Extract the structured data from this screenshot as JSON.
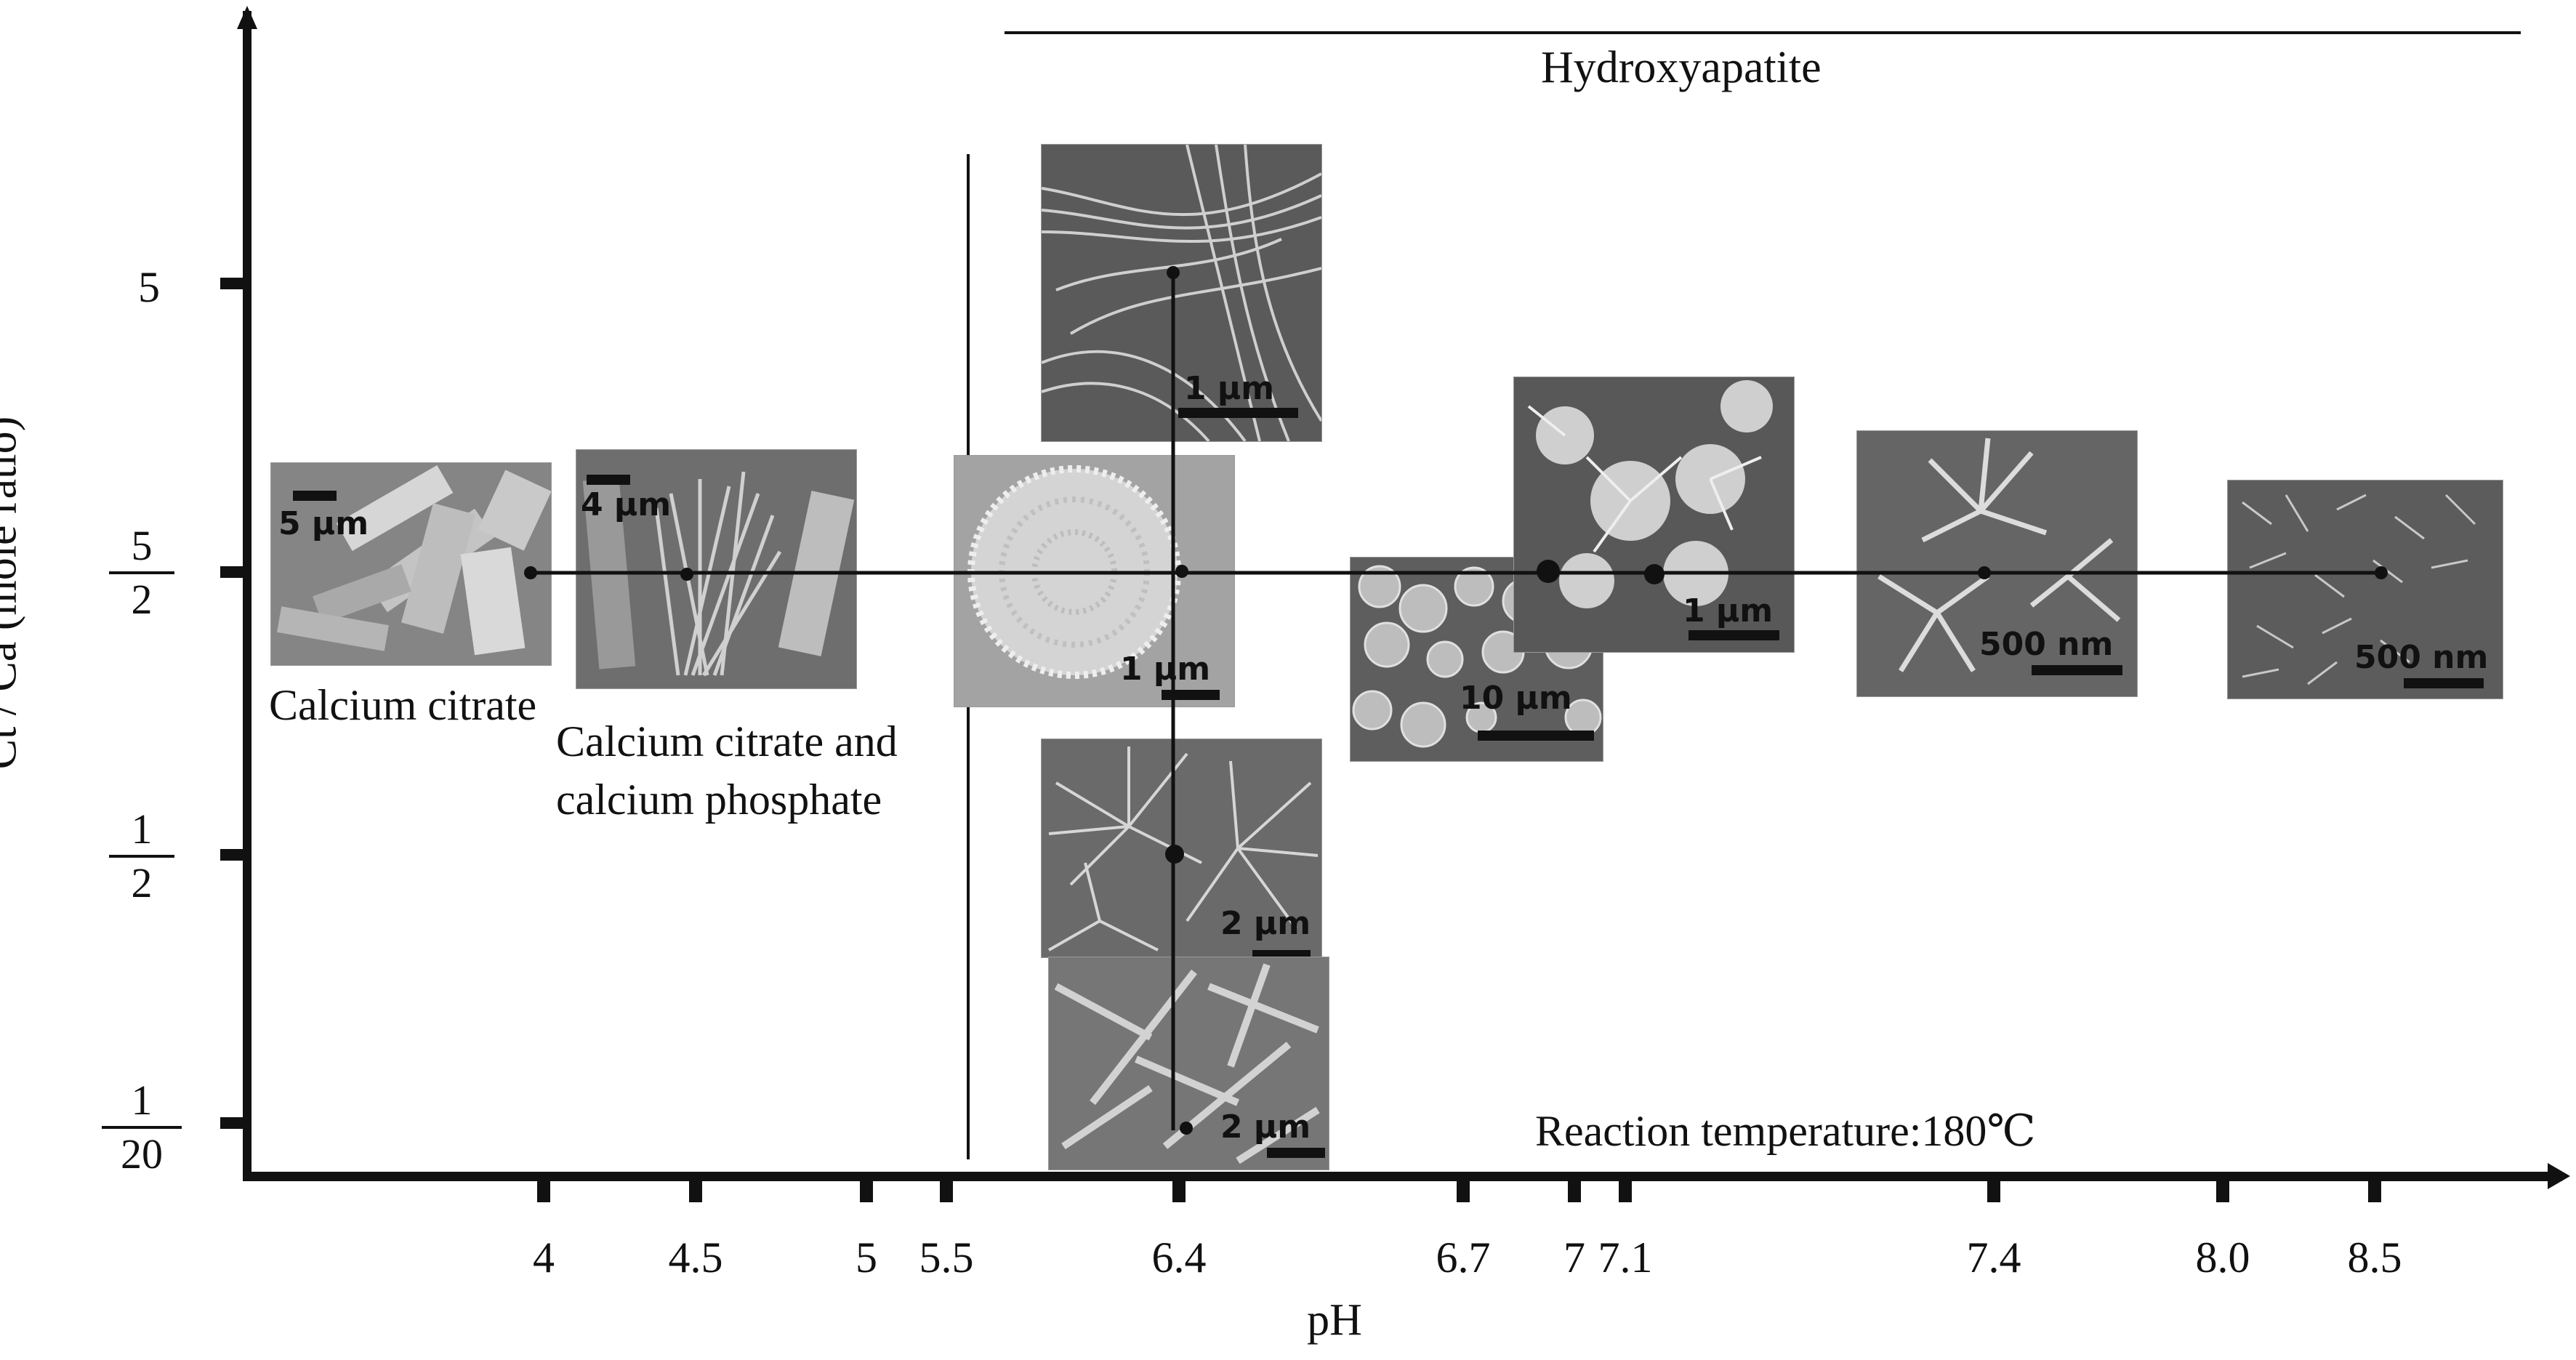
{
  "axes": {
    "x_title": "pH",
    "y_title": "Ct / Ca (mole ratio)",
    "x_ticks": [
      "4",
      "4.5",
      "5",
      "5.5",
      "6.4",
      "6.7",
      "7",
      "7.1",
      "7.4",
      "8.0",
      "8.5"
    ],
    "y_ticks": [
      {
        "num": "5",
        "den": ""
      },
      {
        "num": "5",
        "den": "2"
      },
      {
        "num": "1",
        "den": "2"
      },
      {
        "num": "1",
        "den": "20"
      }
    ]
  },
  "regions": {
    "hydroxyapatite": "Hydroxyapatite",
    "calcium_citrate": "Calcium citrate",
    "mixed_line1": "Calcium citrate and",
    "mixed_line2": "calcium phosphate"
  },
  "condition": "Reaction temperature:180℃",
  "micrographs": [
    {
      "id": "calcium-citrate",
      "scale": "5 μm",
      "texture": "plates"
    },
    {
      "id": "citrate-phosphate",
      "scale": "4 μm",
      "texture": "needles"
    },
    {
      "id": "ph64-ratio5",
      "scale": "1 μm",
      "texture": "fibers"
    },
    {
      "id": "ph64-ratio5-2",
      "scale": "1 μm",
      "texture": "disk"
    },
    {
      "id": "ph64-ratio1-2",
      "scale": "2 μm",
      "texture": "urchins"
    },
    {
      "id": "ph64-ratio1-20",
      "scale": "2 μm",
      "texture": "sticks"
    },
    {
      "id": "ph67",
      "scale": "10 μm",
      "texture": "spheres"
    },
    {
      "id": "ph70",
      "scale": "1 μm",
      "texture": "flowers"
    },
    {
      "id": "ph74",
      "scale": "500 nm",
      "texture": "clusters"
    },
    {
      "id": "ph85",
      "scale": "500 nm",
      "texture": "fine"
    }
  ]
}
